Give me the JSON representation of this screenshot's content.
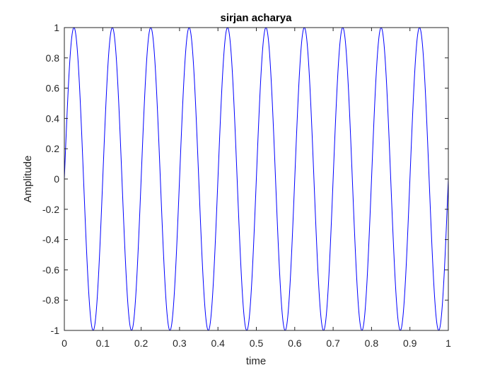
{
  "chart_data": {
    "type": "line",
    "title": "sirjan acharya",
    "xlabel": "time",
    "ylabel": "Amplitude",
    "xlim": [
      0,
      1
    ],
    "ylim": [
      -1,
      1
    ],
    "x_ticks": [
      "0",
      "0.1",
      "0.2",
      "0.3",
      "0.4",
      "0.5",
      "0.6",
      "0.7",
      "0.8",
      "0.9",
      "1"
    ],
    "y_ticks": [
      "-1",
      "-0.8",
      "-0.6",
      "-0.4",
      "-0.2",
      "0",
      "0.2",
      "0.4",
      "0.6",
      "0.8",
      "1"
    ],
    "grid": false,
    "series": [
      {
        "function": "sine",
        "frequency_hz": 10,
        "amplitude": 1,
        "phase": 0,
        "x_start": 0,
        "x_end": 1,
        "color": "#0000ff"
      }
    ]
  }
}
